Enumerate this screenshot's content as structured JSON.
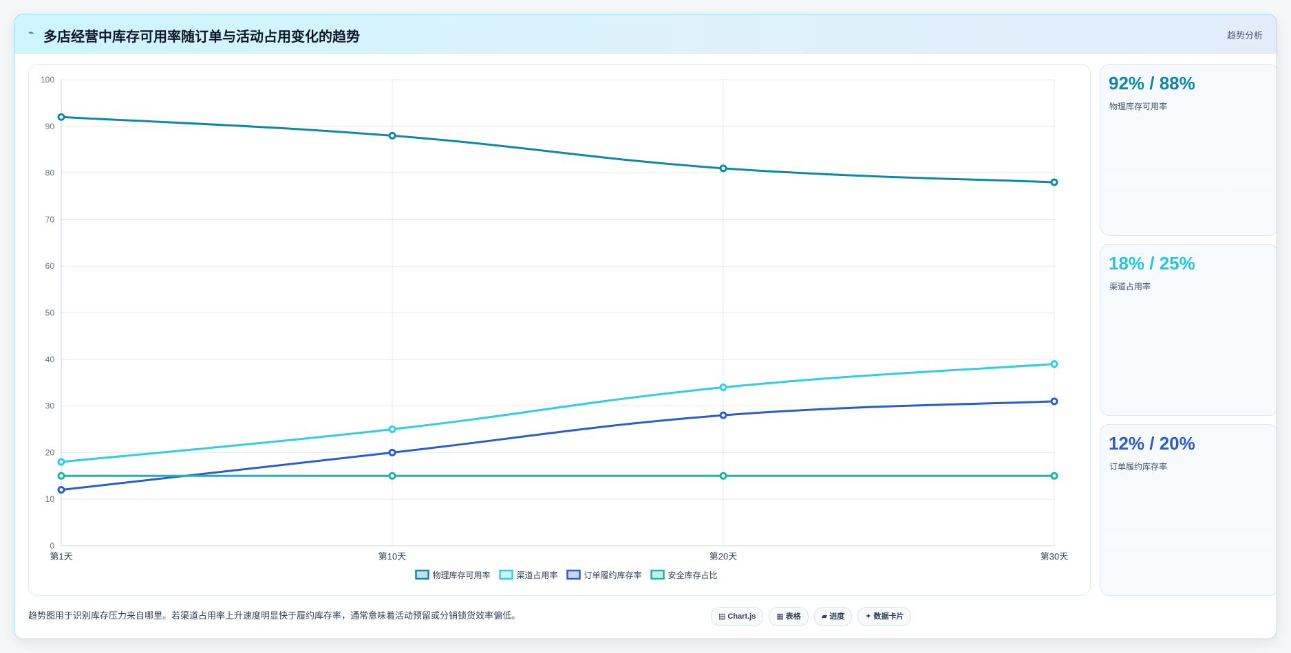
{
  "header": {
    "logo": "⌁",
    "title": "多店经营中库存可用率随订单与活动占用变化的趋势",
    "action": "趋势分析"
  },
  "cards": [
    {
      "value": "92% / 88%",
      "label": "物理库存可用率",
      "color": "#0e89a4"
    },
    {
      "value": "18% / 25%",
      "label": "渠道占用率",
      "color": "#22c7de"
    },
    {
      "value": "12% / 20%",
      "label": "订单履约库存率",
      "color": "#2a5bd0"
    }
  ],
  "footer": {
    "note": "趋势图用于识别库存压力来自哪里。若渠道占用率上升速度明显快于履约库存率，通常意味着活动预留或分销锁货效率偏低。",
    "chips": [
      {
        "icon": "▤",
        "icon_name": "chart-icon",
        "label": "Chart.js"
      },
      {
        "icon": "▦",
        "icon_name": "table-icon",
        "label": "表格"
      },
      {
        "icon": "▰",
        "icon_name": "progress-icon",
        "label": "进度"
      },
      {
        "icon": "✦",
        "icon_name": "card-icon",
        "label": "数据卡片"
      }
    ]
  },
  "chart_data": {
    "type": "line",
    "categories": [
      "第1天",
      "第10天",
      "第20天",
      "第30天"
    ],
    "ylim": [
      0,
      100
    ],
    "yticks": [
      0,
      10,
      20,
      30,
      40,
      50,
      60,
      70,
      80,
      90,
      100
    ],
    "grid": true,
    "legend_position": "bottom",
    "series": [
      {
        "name": "物理库存可用率",
        "values": [
          92,
          88,
          81,
          78
        ],
        "color": "#0e89a4"
      },
      {
        "name": "渠道占用率",
        "values": [
          18,
          25,
          34,
          39
        ],
        "color": "#2ecfe3"
      },
      {
        "name": "订单履约库存率",
        "values": [
          12,
          20,
          28,
          31
        ],
        "color": "#2a5bd0"
      },
      {
        "name": "安全库存占比",
        "values": [
          15,
          15,
          15,
          15
        ],
        "color": "#14b8a6"
      }
    ]
  }
}
